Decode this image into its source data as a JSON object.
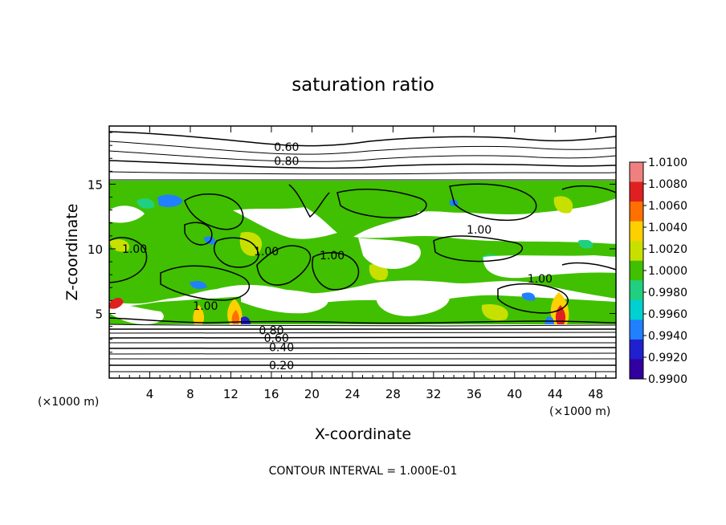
{
  "chart_data": {
    "type": "heatmap",
    "title": "saturation ratio",
    "xlabel": "X-coordinate",
    "ylabel": "Z-coordinate",
    "x_unit_left": "(×1000 m)",
    "x_unit_right": "(×1000 m)",
    "footer": "CONTOUR INTERVAL = 1.000E-01",
    "xlim": [
      0,
      50
    ],
    "ylim": [
      0,
      19.5
    ],
    "x_ticks": [
      4,
      8,
      12,
      16,
      20,
      24,
      28,
      32,
      36,
      40,
      44,
      48
    ],
    "x_tick_labels": [
      "4",
      "8",
      "12",
      "16",
      "20",
      "24",
      "28",
      "32",
      "36",
      "40",
      "44",
      "48"
    ],
    "y_ticks": [
      5,
      10,
      15
    ],
    "y_tick_labels": [
      "5",
      "10",
      "15"
    ],
    "colorbar": {
      "min": 0.99,
      "max": 1.01,
      "tick_labels": [
        "1.0100",
        "1.0080",
        "1.0060",
        "1.0040",
        "1.0020",
        "1.0000",
        "0.9980",
        "0.9960",
        "0.9940",
        "0.9920",
        "0.9900"
      ],
      "colors": [
        "#f08080",
        "#e02020",
        "#ff7000",
        "#ffd000",
        "#c8e000",
        "#40c000",
        "#20d080",
        "#00d0d0",
        "#2080ff",
        "#2020d0",
        "#3000a0"
      ]
    },
    "contour_labels": [
      {
        "text": "0.60",
        "x": 17.5,
        "z": 17.9
      },
      {
        "text": "0.80",
        "x": 17.5,
        "z": 16.8
      },
      {
        "text": "1.00",
        "x": 2.5,
        "z": 10.0
      },
      {
        "text": "1.00",
        "x": 15.5,
        "z": 9.8
      },
      {
        "text": "1.00",
        "x": 22.0,
        "z": 9.5
      },
      {
        "text": "1.00",
        "x": 9.5,
        "z": 5.6
      },
      {
        "text": "1.00",
        "x": 36.5,
        "z": 11.5
      },
      {
        "text": "1.00",
        "x": 42.5,
        "z": 7.7
      },
      {
        "text": "0.80",
        "x": 16.0,
        "z": 3.7
      },
      {
        "text": "0.60",
        "x": 16.5,
        "z": 3.1
      },
      {
        "text": "0.40",
        "x": 17.0,
        "z": 2.4
      },
      {
        "text": "0.20",
        "x": 17.0,
        "z": 1.0
      }
    ]
  }
}
